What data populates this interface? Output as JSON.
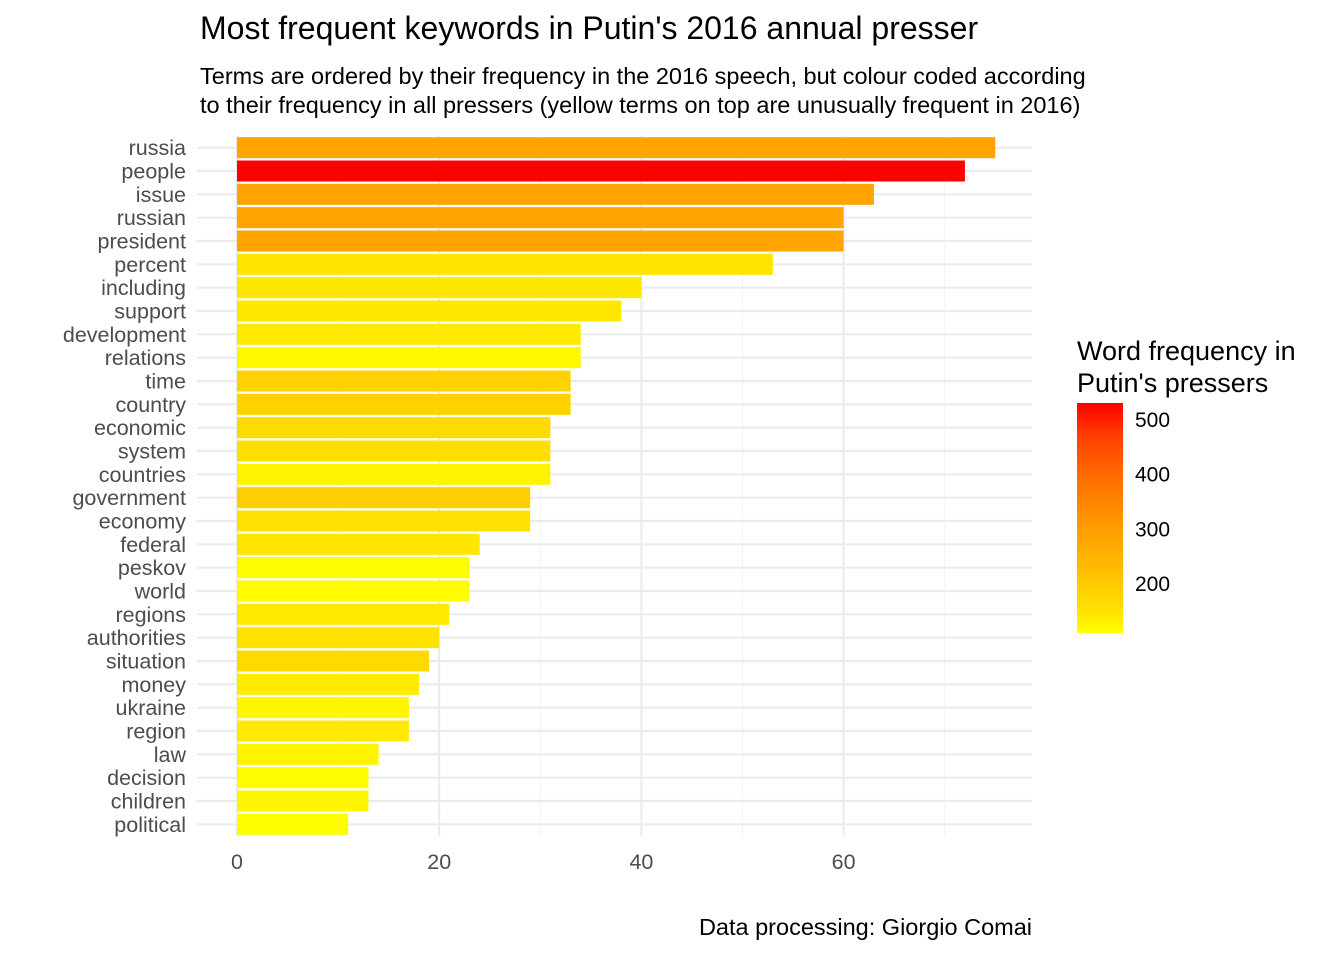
{
  "chart_data": {
    "type": "bar",
    "orientation": "horizontal",
    "title": "Most frequent keywords in Putin's 2016 annual presser",
    "subtitle": [
      "Terms are ordered by their frequency in the 2016 speech, but colour coded according",
      "to their frequency in all pressers (yellow terms on top are unusually frequent in 2016)"
    ],
    "caption": "Data processing:  Giorgio Comai",
    "xlabel": "",
    "ylabel": "",
    "xlim": [
      0,
      78
    ],
    "x_ticks": [
      0,
      20,
      40,
      60
    ],
    "grid": true,
    "categories": [
      "russia",
      "people",
      "issue",
      "russian",
      "president",
      "percent",
      "including",
      "support",
      "development",
      "relations",
      "time",
      "country",
      "economic",
      "system",
      "countries",
      "government",
      "economy",
      "federal",
      "peskov",
      "world",
      "regions",
      "authorities",
      "situation",
      "money",
      "ukraine",
      "region",
      "law",
      "decision",
      "children",
      "political"
    ],
    "values": [
      75,
      72,
      63,
      60,
      60,
      53,
      40,
      38,
      34,
      34,
      33,
      33,
      31,
      31,
      31,
      29,
      29,
      24,
      23,
      23,
      21,
      20,
      19,
      18,
      17,
      17,
      14,
      13,
      13,
      11
    ],
    "fill_values": [
      300,
      530,
      300,
      300,
      300,
      170,
      165,
      165,
      160,
      125,
      210,
      210,
      195,
      185,
      135,
      220,
      180,
      170,
      120,
      120,
      160,
      175,
      195,
      160,
      130,
      160,
      135,
      120,
      130,
      115
    ],
    "legend": {
      "title": [
        "Word frequency in",
        "Putin's pressers"
      ],
      "ticks": [
        200,
        300,
        400,
        500
      ],
      "range": [
        110,
        530
      ],
      "placement": "right",
      "colors": [
        "#ffff00",
        "#ffe100",
        "#ffbf00",
        "#ff9900",
        "#ff7300",
        "#ff3d00",
        "#ff0000"
      ]
    }
  }
}
